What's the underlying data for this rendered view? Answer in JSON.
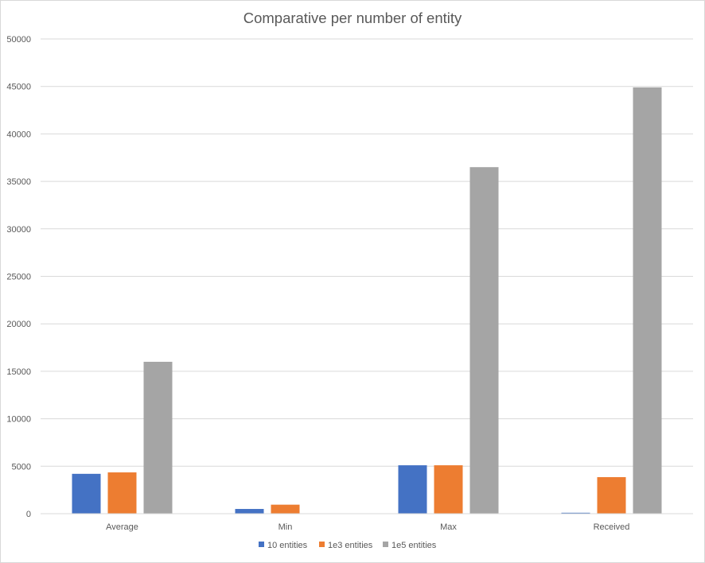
{
  "chart_data": {
    "type": "bar",
    "title": "Comparative per number of entity",
    "xlabel": "",
    "ylabel": "",
    "categories": [
      "Average",
      "Min",
      "Max",
      "Received"
    ],
    "series": [
      {
        "name": "10 entities",
        "color": "#4472c4",
        "values": [
          4200,
          500,
          5100,
          100
        ]
      },
      {
        "name": "1e3 entities",
        "color": "#ed7d31",
        "values": [
          4350,
          950,
          5100,
          3850
        ]
      },
      {
        "name": "1e5 entities",
        "color": "#a5a5a5",
        "values": [
          16000,
          0,
          36500,
          44900
        ]
      }
    ],
    "ylim": [
      0,
      50000
    ],
    "yticks": [
      "0",
      "5000",
      "10000",
      "15000",
      "20000",
      "25000",
      "30000",
      "35000",
      "40000",
      "45000",
      "50000"
    ],
    "grid": true,
    "legend_position": "bottom"
  }
}
